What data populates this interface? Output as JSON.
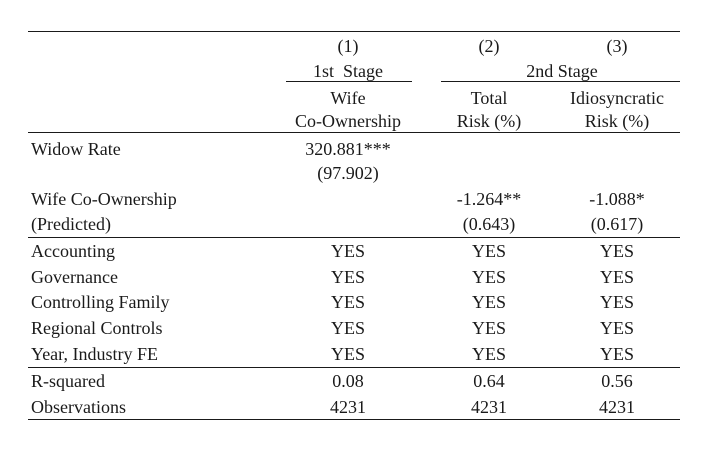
{
  "columns": {
    "col1": {
      "number": "(1)",
      "stage": "1st  Stage",
      "name_line1": "Wife",
      "name_line2": "Co-Ownership"
    },
    "col2": {
      "number": "(2)",
      "name_line1": "Total",
      "name_line2": "Risk (%)"
    },
    "col3": {
      "number": "(3)",
      "name_line1": "Idiosyncratic",
      "name_line2": "Risk (%)"
    },
    "stage2_label": "2nd Stage"
  },
  "rows": {
    "widow_rate": {
      "label": "Widow Rate",
      "c1": "320.881***",
      "c1_se": "(97.902)"
    },
    "wife_coown": {
      "label_line1": "Wife Co-Ownership",
      "label_line2": "(Predicted)",
      "c2": "-1.264**",
      "c2_se": "(0.643)",
      "c3": "-1.088*",
      "c3_se": "(0.617)"
    },
    "controls": [
      {
        "label": "Accounting",
        "c1": "YES",
        "c2": "YES",
        "c3": "YES"
      },
      {
        "label": "Governance",
        "c1": "YES",
        "c2": "YES",
        "c3": "YES"
      },
      {
        "label": "Controlling Family",
        "c1": "YES",
        "c2": "YES",
        "c3": "YES"
      },
      {
        "label": "Regional Controls",
        "c1": "YES",
        "c2": "YES",
        "c3": "YES"
      },
      {
        "label": "Year, Industry FE",
        "c1": "YES",
        "c2": "YES",
        "c3": "YES"
      }
    ],
    "stats": [
      {
        "label": "R-squared",
        "c1": "0.08",
        "c2": "0.64",
        "c3": "0.56"
      },
      {
        "label": "Observations",
        "c1": "4231",
        "c2": "4231",
        "c3": "4231"
      }
    ]
  }
}
